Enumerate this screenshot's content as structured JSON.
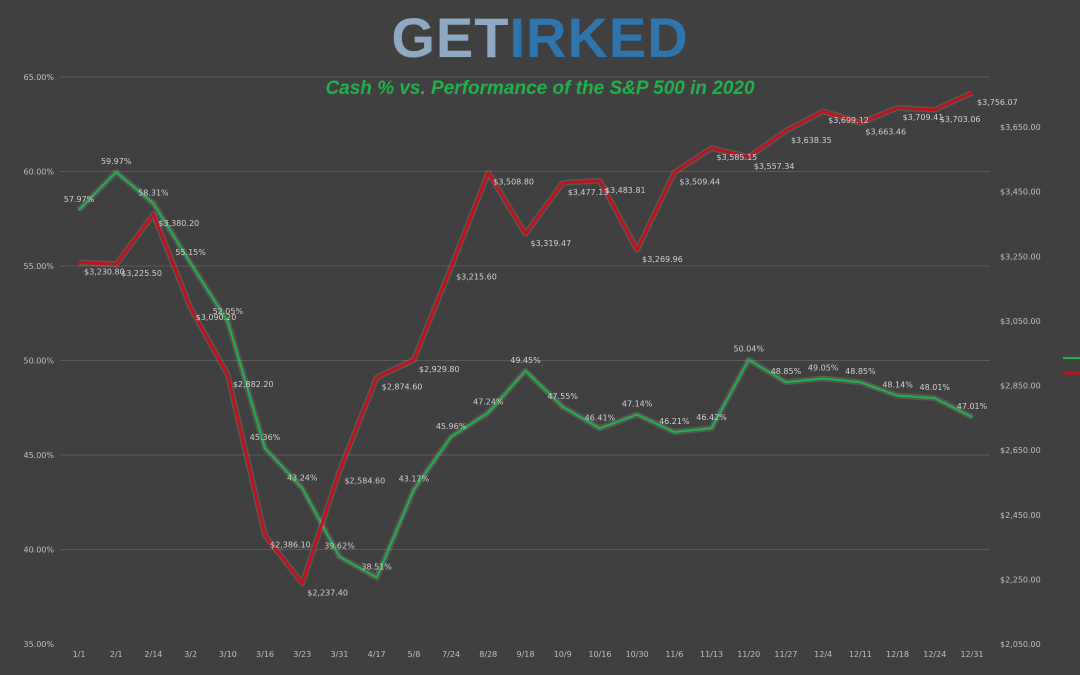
{
  "logo": {
    "part1": "GET",
    "part2": "IRKED"
  },
  "chart_data": {
    "type": "line",
    "title": "Cash % vs. Performance of the S&P 500 in 2020",
    "categories": [
      "1/1",
      "2/1",
      "2/14",
      "3/2",
      "3/10",
      "3/16",
      "3/23",
      "3/31",
      "4/17",
      "5/8",
      "7/24",
      "8/28",
      "9/18",
      "10/9",
      "10/16",
      "10/30",
      "11/6",
      "11/13",
      "11/20",
      "11/27",
      "12/4",
      "12/11",
      "12/18",
      "12/24",
      "12/31"
    ],
    "series": [
      {
        "axis": "left",
        "color": "#1fb14a",
        "values": [
          57.97,
          59.97,
          58.31,
          55.15,
          52.05,
          45.36,
          43.24,
          39.62,
          38.51,
          43.17,
          45.96,
          47.24,
          49.45,
          47.55,
          46.41,
          47.14,
          46.21,
          46.42,
          50.04,
          48.85,
          49.05,
          48.85,
          48.14,
          48.01,
          47.01
        ],
        "labels": [
          "57.97%",
          "59.97%",
          "58.31%",
          "55.15%",
          "52.05%",
          "45.36%",
          "43.24%",
          "39.62%",
          "38.51%",
          "43.17%",
          "45.96%",
          "47.24%",
          "49.45%",
          "47.55%",
          "46.41%",
          "47.14%",
          "46.21%",
          "46.42%",
          "50.04%",
          "48.85%",
          "49.05%",
          "48.85%",
          "48.14%",
          "48.01%",
          "47.01%"
        ]
      },
      {
        "axis": "right",
        "color": "#c0141c",
        "values": [
          3230.8,
          3225.5,
          3380.2,
          3090.2,
          2882.2,
          2386.1,
          2237.4,
          2584.6,
          2874.6,
          2929.8,
          3215.6,
          3508.8,
          3319.47,
          3477.13,
          3483.81,
          3269.96,
          3509.44,
          3585.15,
          3557.34,
          3638.35,
          3699.12,
          3663.46,
          3709.41,
          3703.06,
          3756.07
        ],
        "labels": [
          "$3,230.80",
          "$3,225.50",
          "$3,380.20",
          "$3,090.20",
          "$2,882.20",
          "$2,386.10",
          "$2,237.40",
          "$2,584.60",
          "$2,874.60",
          "$2,929.80",
          "$3,215.60",
          "$3,508.80",
          "$3,319.47",
          "$3,477.13",
          "$3,483.81",
          "$3,269.96",
          "$3,509.44",
          "$3,585.15",
          "$3,557.34",
          "$3,638.35",
          "$3,699.12",
          "$3,663.46",
          "$3,709.41",
          "$3,703.06",
          "$3,756.07"
        ]
      }
    ],
    "y_left": {
      "ylim": [
        35,
        65
      ],
      "ticks": [
        "35.00%",
        "40.00%",
        "45.00%",
        "50.00%",
        "55.00%",
        "60.00%",
        "65.00%"
      ],
      "tick_values": [
        35,
        40,
        45,
        50,
        55,
        60,
        65
      ]
    },
    "y_right": {
      "ylim": [
        2050,
        3805
      ],
      "ticks": [
        "$2,050.00",
        "$2,250.00",
        "$2,450.00",
        "$2,650.00",
        "$2,850.00",
        "$3,050.00",
        "$3,250.00",
        "$3,450.00",
        "$3,650.00"
      ],
      "tick_values": [
        2050,
        2250,
        2450,
        2650,
        2850,
        3050,
        3250,
        3450,
        3650
      ]
    },
    "grid": true,
    "legend": "right"
  }
}
